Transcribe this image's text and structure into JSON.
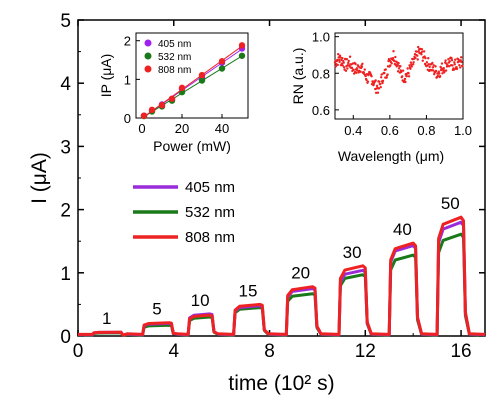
{
  "chart_data": [
    {
      "type": "line",
      "xlabel": "time (10² s)",
      "ylabel": "I (μA)",
      "xlim": [
        0,
        17
      ],
      "ylim": [
        0,
        5
      ],
      "xticks": [
        "0",
        "4",
        "8",
        "12",
        "16"
      ],
      "yticks": [
        "0",
        "1",
        "2",
        "3",
        "4",
        "5"
      ],
      "grid": false,
      "legend_position": "left-middle",
      "pulse_labels": [
        "1",
        "5",
        "10",
        "15",
        "20",
        "30",
        "40",
        "50"
      ],
      "pulse_windows": [
        [
          0.6,
          1.8
        ],
        [
          2.7,
          3.9
        ],
        [
          4.6,
          5.6
        ],
        [
          6.5,
          7.7
        ],
        [
          8.7,
          9.9
        ],
        [
          10.9,
          12.0
        ],
        [
          13.0,
          14.1
        ],
        [
          15.0,
          16.1
        ]
      ],
      "series": [
        {
          "name": "405 nm",
          "color": "#9a2bd8",
          "values": [
            0.06,
            0.2,
            0.35,
            0.48,
            0.75,
            1.04,
            1.43,
            1.8
          ]
        },
        {
          "name": "532 nm",
          "color": "#1a7a1a",
          "values": [
            0.05,
            0.17,
            0.3,
            0.45,
            0.67,
            0.97,
            1.28,
            1.61
          ]
        },
        {
          "name": "808 nm",
          "color": "#ee2222",
          "values": [
            0.06,
            0.21,
            0.33,
            0.5,
            0.78,
            1.11,
            1.47,
            1.88
          ]
        }
      ]
    },
    {
      "type": "scatter",
      "xlabel": "Power (mW)",
      "ylabel": "IP (μA)",
      "xlim": [
        -3,
        53
      ],
      "ylim": [
        0,
        2.2
      ],
      "xticks": [
        "0",
        "20",
        "40"
      ],
      "yticks": [
        "0",
        "1",
        "2"
      ],
      "legend_position": "top-left",
      "x": [
        1,
        5,
        10,
        15,
        20,
        30,
        40,
        50
      ],
      "series": [
        {
          "name": "405 nm",
          "color": "#a020f0",
          "values": [
            0.06,
            0.2,
            0.35,
            0.48,
            0.75,
            1.04,
            1.43,
            1.8
          ]
        },
        {
          "name": "532 nm",
          "color": "#1a7a1a",
          "values": [
            0.05,
            0.17,
            0.3,
            0.45,
            0.67,
            0.97,
            1.28,
            1.61
          ]
        },
        {
          "name": "808 nm",
          "color": "#ee2222",
          "values": [
            0.06,
            0.21,
            0.33,
            0.5,
            0.78,
            1.11,
            1.47,
            1.88
          ]
        }
      ]
    },
    {
      "type": "scatter",
      "xlabel": "Wavelength (μm)",
      "ylabel": "RN (a.u.)",
      "xlim": [
        0.3,
        1.0
      ],
      "ylim": [
        0.55,
        1.02
      ],
      "xticks": [
        "0.4",
        "0.6",
        "0.8",
        "1.0"
      ],
      "yticks": [
        "0.6",
        "0.8",
        "1.0"
      ],
      "series": [
        {
          "name": "",
          "color": "#ee2222",
          "description_free": true,
          "x": [
            0.3,
            0.32,
            0.34,
            0.36,
            0.38,
            0.4,
            0.42,
            0.44,
            0.46,
            0.48,
            0.5,
            0.52,
            0.54,
            0.56,
            0.58,
            0.6,
            0.62,
            0.64,
            0.66,
            0.68,
            0.7,
            0.72,
            0.74,
            0.76,
            0.78,
            0.8,
            0.82,
            0.84,
            0.86,
            0.88,
            0.9,
            0.92,
            0.94,
            0.96,
            0.98,
            1.0
          ],
          "values": [
            0.86,
            0.88,
            0.87,
            0.84,
            0.86,
            0.83,
            0.82,
            0.84,
            0.8,
            0.77,
            0.78,
            0.73,
            0.72,
            0.78,
            0.8,
            0.87,
            0.9,
            0.86,
            0.8,
            0.78,
            0.8,
            0.84,
            0.88,
            0.92,
            0.9,
            0.86,
            0.84,
            0.82,
            0.8,
            0.82,
            0.84,
            0.86,
            0.85,
            0.84,
            0.86,
            0.85
          ]
        }
      ]
    }
  ]
}
